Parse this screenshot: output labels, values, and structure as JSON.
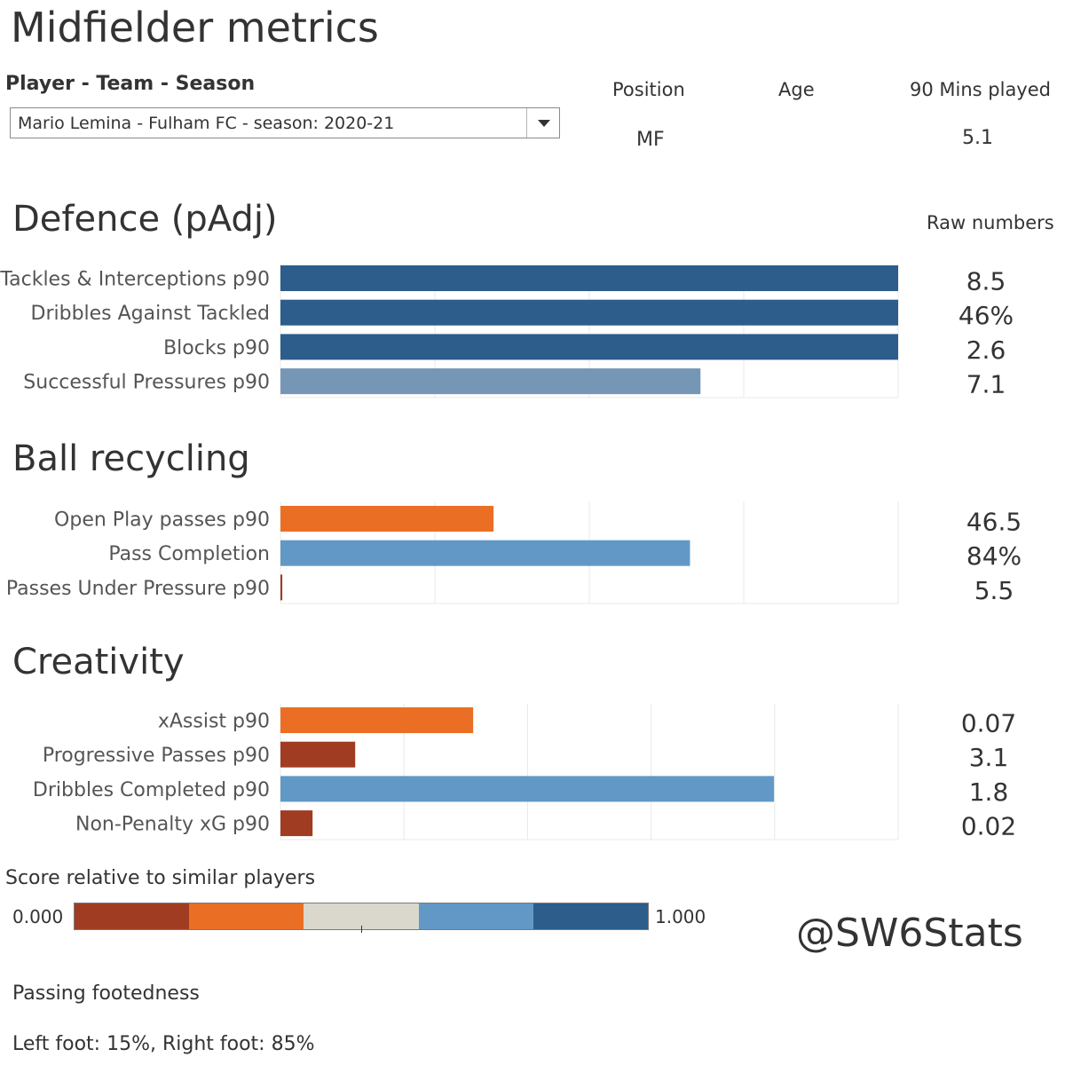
{
  "page": {
    "title": "Midfielder metrics",
    "watermark": "@SW6Stats"
  },
  "filter": {
    "label": "Player - Team - Season",
    "selected": "Mario Lemina - Fulham FC - season: 2020-21"
  },
  "player_info": {
    "position_label": "Position",
    "position_value": "MF",
    "age_label": "Age",
    "age_value": "",
    "mins_label": "90 Mins played",
    "mins_value": "5.1"
  },
  "raw_numbers_label": "Raw numbers",
  "colors": {
    "dark_red": "#a03c22",
    "orange": "#ea6f25",
    "neutral": "#dad7cd",
    "light_blue": "#6198c6",
    "dark_blue": "#2c5d8b",
    "muted_blue": "#7696b6",
    "grid": "#e9e9e9"
  },
  "legend": {
    "title": "Score relative to similar players",
    "min": "0.000",
    "max": "1.000",
    "colors": [
      "#a03c22",
      "#ea6f25",
      "#dad7cd",
      "#6198c6",
      "#2c5d8b"
    ]
  },
  "footedness": {
    "title": "Passing footedness",
    "value": "Left foot: 15%, Right foot: 85%"
  },
  "chart_data": [
    {
      "type": "bar",
      "orientation": "horizontal",
      "title": "Defence (pAdj)",
      "xlim": [
        0,
        1
      ],
      "grid": true,
      "categories": [
        "Tackles & Interceptions p90",
        "Dribbles Against Tackled",
        "Blocks p90",
        "Successful Pressures p90"
      ],
      "values": [
        1.0,
        1.0,
        1.0,
        0.68
      ],
      "raw_values": [
        "8.5",
        "46%",
        "2.6",
        "7.1"
      ],
      "colors": [
        "#2c5d8b",
        "#2c5d8b",
        "#2c5d8b",
        "#7696b6"
      ]
    },
    {
      "type": "bar",
      "orientation": "horizontal",
      "title": "Ball recycling",
      "xlim": [
        0,
        1
      ],
      "grid": true,
      "categories": [
        "Open Play passes p90",
        "Pass Completion",
        "Passes Under Pressure p90"
      ],
      "values": [
        0.345,
        0.663,
        0.003
      ],
      "raw_values": [
        "46.5",
        "84%",
        "5.5"
      ],
      "colors": [
        "#ea6f25",
        "#6198c6",
        "#a03c22"
      ]
    },
    {
      "type": "bar",
      "orientation": "horizontal",
      "title": "Creativity",
      "xlim": [
        0,
        1
      ],
      "grid": true,
      "categories": [
        "xAssist p90",
        "Progressive Passes p90",
        "Dribbles Completed p90",
        "Non-Penalty xG p90"
      ],
      "values": [
        0.312,
        0.121,
        0.799,
        0.052
      ],
      "raw_values": [
        "0.07",
        "3.1",
        "1.8",
        "0.02"
      ],
      "colors": [
        "#ea6f25",
        "#a03c22",
        "#6198c6",
        "#a03c22"
      ]
    }
  ]
}
